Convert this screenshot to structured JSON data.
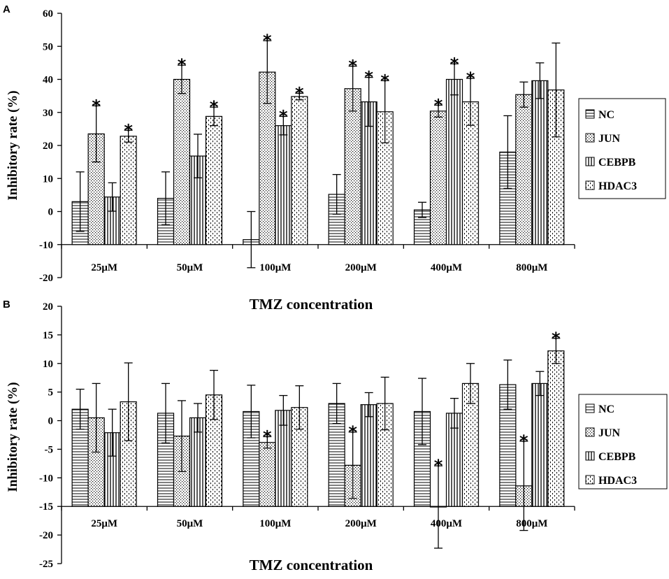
{
  "chart_data": [
    {
      "panel": "A",
      "type": "bar",
      "xlabel": "TMZ concentration",
      "ylabel": "Inhibitory rate (%)",
      "ylim": [
        -20,
        60
      ],
      "yticks": [
        -20,
        -10,
        0,
        10,
        20,
        30,
        40,
        50,
        60
      ],
      "baseline": -10,
      "categories": [
        "25μM",
        "50μM",
        "100μM",
        "200μM",
        "400μM",
        "800μM"
      ],
      "legend_position": "right",
      "series": [
        {
          "name": "NC",
          "pattern": "horizontal",
          "values": [
            3,
            4,
            -8.5,
            5.2,
            0.5,
            18
          ],
          "errors": [
            9,
            8,
            8.5,
            6,
            2.3,
            11
          ],
          "significant": [
            false,
            false,
            false,
            false,
            false,
            false
          ]
        },
        {
          "name": "JUN",
          "pattern": "dots",
          "values": [
            23.5,
            40,
            42.2,
            37.2,
            30.4,
            35.4
          ],
          "errors": [
            8.5,
            4.3,
            9.5,
            6.8,
            1.8,
            3.8
          ],
          "significant": [
            true,
            true,
            true,
            true,
            true,
            false
          ]
        },
        {
          "name": "CEBPB",
          "pattern": "vertical",
          "values": [
            4.4,
            16.8,
            26,
            33.2,
            40,
            39.6
          ],
          "errors": [
            4.3,
            6.6,
            2.8,
            7.4,
            4.7,
            5.4
          ],
          "significant": [
            false,
            false,
            true,
            true,
            true,
            false
          ]
        },
        {
          "name": "HDAC3",
          "pattern": "dashes",
          "values": [
            22.8,
            28.8,
            34.8,
            30.2,
            33.2,
            36.8
          ],
          "errors": [
            1.8,
            2.8,
            1,
            9.4,
            7.1,
            14.2
          ],
          "significant": [
            true,
            true,
            true,
            true,
            true,
            false
          ]
        }
      ],
      "annotation_symbol": "*"
    },
    {
      "panel": "B",
      "type": "bar",
      "xlabel": "TMZ concentration",
      "ylabel": "Inhibitory rate (%)",
      "ylim": [
        -25,
        20
      ],
      "yticks": [
        -25,
        -20,
        -15,
        -10,
        -5,
        0,
        5,
        10,
        15,
        20
      ],
      "baseline": -15,
      "categories": [
        "25μM",
        "50μM",
        "100μM",
        "200μM",
        "400μM",
        "800μM"
      ],
      "legend_position": "right",
      "series": [
        {
          "name": "NC",
          "pattern": "horizontal",
          "values": [
            2,
            1.3,
            1.6,
            3,
            1.6,
            6.3
          ],
          "errors": [
            3.5,
            5.2,
            4.6,
            3.5,
            5.8,
            4.3
          ],
          "significant": [
            false,
            false,
            false,
            false,
            false,
            false
          ]
        },
        {
          "name": "JUN",
          "pattern": "dots",
          "values": [
            0.5,
            -2.7,
            -3.8,
            -7.8,
            -15.1,
            -11.4
          ],
          "errors": [
            6,
            6.2,
            1,
            5.8,
            7.2,
            7.8
          ],
          "significant": [
            false,
            false,
            true,
            true,
            true,
            true
          ]
        },
        {
          "name": "CEBPB",
          "pattern": "vertical",
          "values": [
            -2.1,
            0.5,
            1.8,
            2.8,
            1.3,
            6.5
          ],
          "errors": [
            4.1,
            2.5,
            2.6,
            2.1,
            2.6,
            2.1
          ],
          "significant": [
            false,
            false,
            false,
            false,
            false,
            false
          ]
        },
        {
          "name": "HDAC3",
          "pattern": "dashes",
          "values": [
            3.3,
            4.5,
            2.3,
            3,
            6.5,
            12.2
          ],
          "errors": [
            6.8,
            4.3,
            3.8,
            4.6,
            3.5,
            2.2
          ],
          "significant": [
            false,
            false,
            false,
            false,
            false,
            true
          ]
        }
      ],
      "annotation_symbol": "*"
    }
  ]
}
